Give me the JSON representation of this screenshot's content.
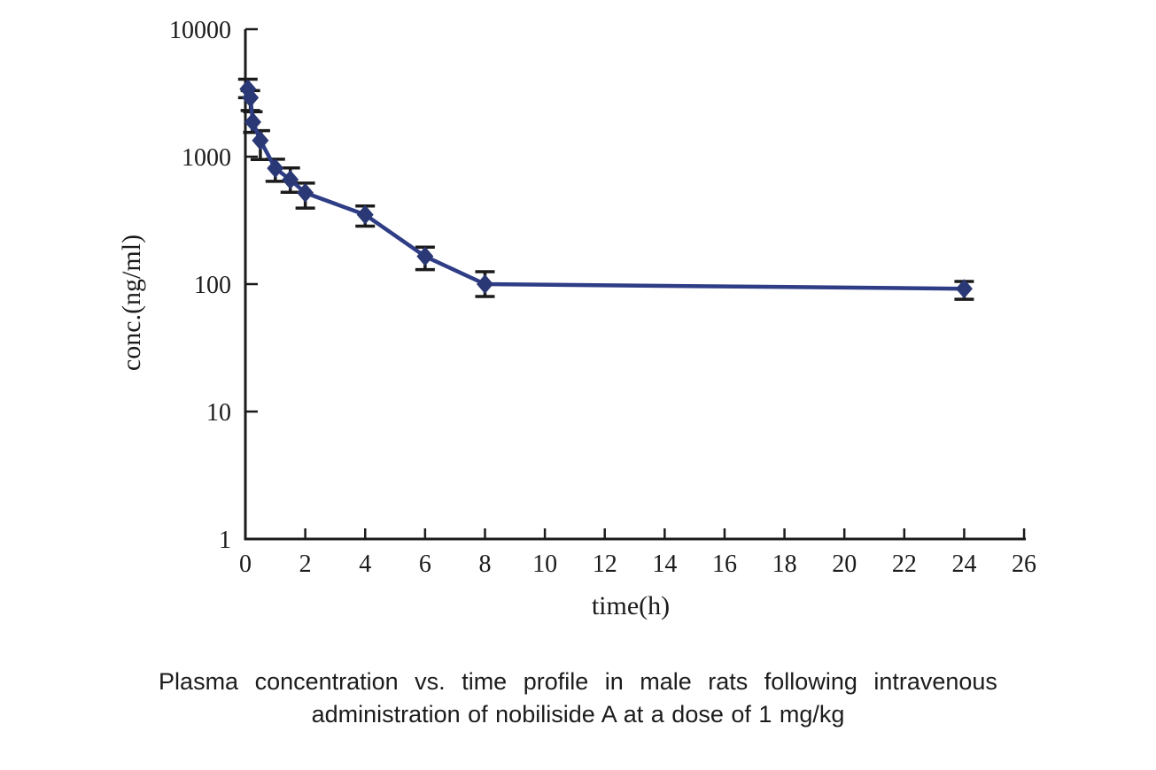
{
  "figure": {
    "caption_line1": "Plasma concentration vs. time profile in male rats following intravenous",
    "caption_line2": "administration of nobiliside A at a dose of 1 mg/kg"
  },
  "colors": {
    "series_line": "#2e3d86",
    "series_marker": "#2b3876",
    "error_bar": "#1b1b1b",
    "axis": "#1b1b1b",
    "background": "#ffffff"
  },
  "chart_data": {
    "type": "line",
    "title": "",
    "xlabel": "time(h)",
    "ylabel": "conc.(ng/ml)",
    "x_scale": "linear",
    "y_scale": "log",
    "xlim": [
      0,
      26
    ],
    "ylim": [
      1,
      10000
    ],
    "x_ticks": [
      0,
      2,
      4,
      6,
      8,
      10,
      12,
      14,
      16,
      18,
      20,
      22,
      24,
      26
    ],
    "y_ticks": [
      1,
      10,
      100,
      1000,
      10000
    ],
    "grid": false,
    "legend_position": "none",
    "marker": "diamond",
    "error_bars": true,
    "series": [
      {
        "name": "nobiliside A 1 mg/kg IV",
        "x": [
          0.083,
          0.167,
          0.25,
          0.5,
          1,
          1.5,
          2,
          4,
          6,
          8,
          24
        ],
        "y": [
          3400,
          2900,
          1870,
          1340,
          810,
          660,
          520,
          350,
          165,
          100,
          92
        ],
        "y_err_high": [
          4050,
          3300,
          2250,
          1600,
          955,
          815,
          620,
          410,
          195,
          125,
          105
        ],
        "y_err_low": [
          2900,
          2300,
          1550,
          950,
          640,
          525,
          395,
          285,
          130,
          80,
          76
        ]
      }
    ]
  }
}
